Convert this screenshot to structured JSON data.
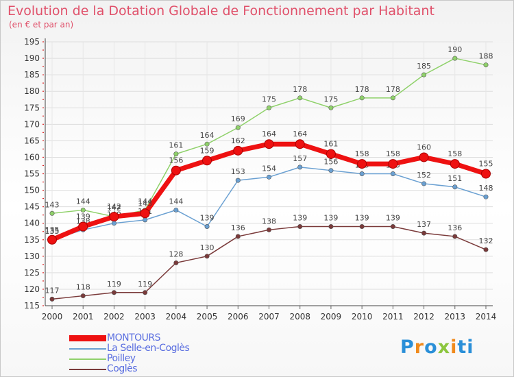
{
  "header": {
    "title": "Evolution de la Dotation Globale de Fonctionnement par Habitant",
    "subtitle": "(en € et par an)"
  },
  "logo": {
    "text": "Proxiti",
    "letters": [
      "P",
      "r",
      "o",
      "x",
      "i",
      "ti"
    ]
  },
  "chart_data": {
    "type": "line",
    "title": "Evolution de la Dotation Globale de Fonctionnement par Habitant",
    "subtitle": "(en € et par an)",
    "xlabel": "",
    "ylabel": "",
    "x": [
      "2000",
      "2001",
      "2002",
      "2003",
      "2004",
      "2005",
      "2006",
      "2007",
      "2008",
      "2009",
      "2010",
      "2011",
      "2012",
      "2013",
      "2014"
    ],
    "ylim": [
      115,
      195
    ],
    "yticks": [
      115,
      120,
      125,
      130,
      135,
      140,
      145,
      150,
      155,
      160,
      165,
      170,
      175,
      180,
      185,
      190,
      195
    ],
    "grid": true,
    "legend_position": "bottom-left",
    "series": [
      {
        "name": "Poilley",
        "color": "#8fd16a",
        "values": [
          143,
          144,
          142,
          144,
          161,
          164,
          169,
          175,
          178,
          175,
          178,
          178,
          185,
          190,
          188
        ]
      },
      {
        "name": "La Selle-en-Coglès",
        "color": "#6aa0d2",
        "values": [
          135,
          138,
          140,
          141,
          144,
          139,
          153,
          154,
          157,
          156,
          155,
          155,
          152,
          151,
          148
        ]
      },
      {
        "name": "Coglès",
        "color": "#7a3a3a",
        "values": [
          117,
          118,
          119,
          119,
          128,
          130,
          136,
          138,
          139,
          139,
          139,
          139,
          137,
          136,
          132
        ]
      },
      {
        "name": "MONTOURS",
        "color": "#ee1111",
        "values": [
          135,
          139,
          142,
          143,
          156,
          159,
          162,
          164,
          164,
          161,
          158,
          158,
          160,
          158,
          155
        ]
      }
    ],
    "legend_order": [
      "MONTOURS",
      "La Selle-en-Coglès",
      "Poilley",
      "Coglès"
    ]
  }
}
